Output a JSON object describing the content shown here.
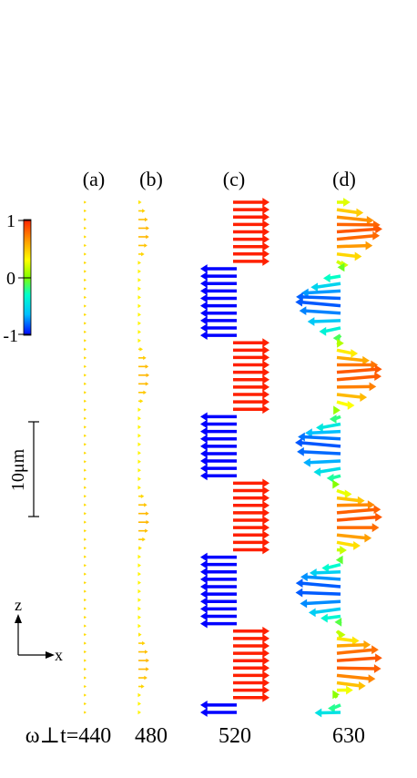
{
  "panels": [
    {
      "label": "(a)",
      "time": "440",
      "amplitude": 0.25,
      "cycles": 0,
      "twist": 0
    },
    {
      "label": "(b)",
      "time": "480",
      "amplitude": 0.55,
      "cycles": 3.6,
      "twist": 0
    },
    {
      "label": "(c)",
      "time": "520",
      "amplitude": 1.0,
      "cycles": 3.6,
      "twist": 0
    },
    {
      "label": "(d)",
      "time": "630",
      "amplitude": 1.0,
      "cycles": 3.6,
      "twist": 1
    }
  ],
  "time_prefix": "ω⊥t=",
  "colorbar": {
    "ticks": [
      "1",
      "0",
      "-1"
    ],
    "range": [
      -1,
      1
    ],
    "colors": [
      "#0000ff",
      "#00bfff",
      "#00ffcc",
      "#80ff00",
      "#ffff00",
      "#ff9900",
      "#ff2000"
    ]
  },
  "scalebar": {
    "label": "10μm"
  },
  "axes": {
    "z": "z",
    "x": "x"
  }
}
